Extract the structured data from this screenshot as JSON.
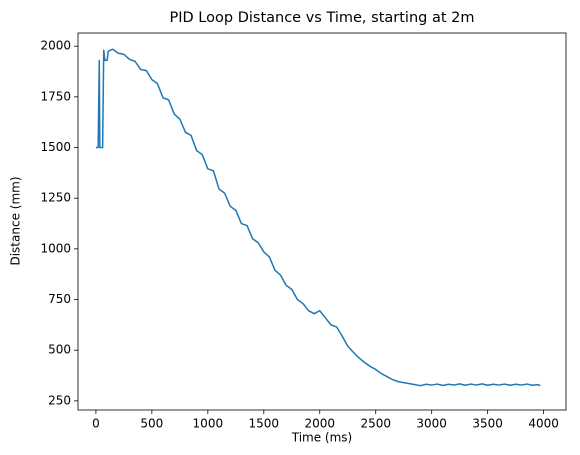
{
  "chart_data": {
    "type": "line",
    "title": "PID Loop Distance vs Time, starting at 2m",
    "x_label": "Time (ms)",
    "y_label": "Distance (mm)",
    "x": [
      0,
      20,
      30,
      35,
      60,
      70,
      80,
      100,
      110,
      150,
      200,
      250,
      300,
      350,
      400,
      450,
      500,
      550,
      600,
      650,
      700,
      750,
      800,
      850,
      900,
      950,
      1000,
      1050,
      1100,
      1150,
      1200,
      1250,
      1300,
      1350,
      1400,
      1450,
      1500,
      1550,
      1600,
      1650,
      1700,
      1750,
      1800,
      1850,
      1900,
      1950,
      2000,
      2050,
      2100,
      2150,
      2200,
      2250,
      2300,
      2350,
      2400,
      2450,
      2500,
      2550,
      2600,
      2650,
      2700,
      2750,
      2800,
      2850,
      2900,
      2950,
      3000,
      3050,
      3100,
      3150,
      3200,
      3250,
      3300,
      3350,
      3400,
      3450,
      3500,
      3550,
      3600,
      3650,
      3700,
      3750,
      3800,
      3850,
      3900,
      3950,
      3970
    ],
    "series": [
      {
        "name": "Distance",
        "color": "#1f77b4",
        "values": [
          1500,
          1500,
          1930,
          1500,
          1500,
          1980,
          1930,
          1930,
          1975,
          1985,
          1965,
          1960,
          1935,
          1925,
          1885,
          1880,
          1835,
          1815,
          1745,
          1735,
          1665,
          1640,
          1575,
          1560,
          1485,
          1465,
          1395,
          1385,
          1295,
          1275,
          1210,
          1190,
          1125,
          1115,
          1050,
          1030,
          985,
          960,
          895,
          870,
          820,
          800,
          750,
          730,
          695,
          680,
          695,
          660,
          625,
          615,
          570,
          520,
          490,
          462,
          440,
          420,
          405,
          385,
          370,
          355,
          345,
          340,
          335,
          330,
          325,
          332,
          328,
          333,
          326,
          332,
          328,
          334,
          327,
          333,
          328,
          334,
          327,
          332,
          328,
          333,
          327,
          332,
          328,
          333,
          327,
          330,
          325
        ]
      }
    ],
    "xlim": [
      -160,
      4200
    ],
    "ylim": [
      205,
      2065
    ],
    "xticks": [
      0,
      500,
      1000,
      1500,
      2000,
      2500,
      3000,
      3500,
      4000
    ],
    "yticks": [
      250,
      500,
      750,
      1000,
      1250,
      1500,
      1750,
      2000
    ]
  }
}
